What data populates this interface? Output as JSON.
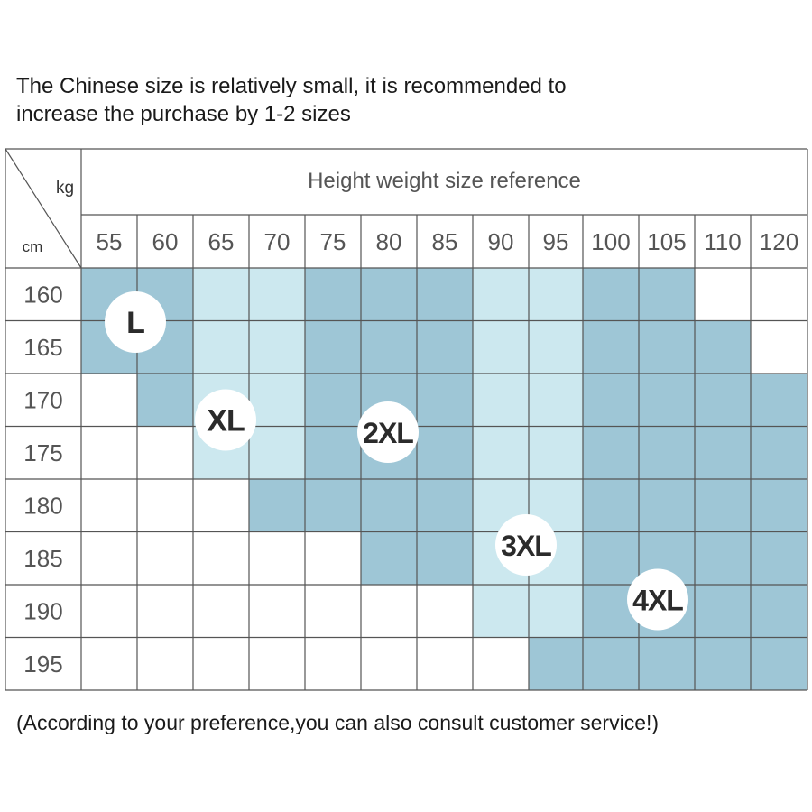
{
  "notice": {
    "line1": "The Chinese size is relatively small, it is recommended to",
    "line2": "increase the purchase by 1-2 sizes"
  },
  "footer": {
    "text": "(According to your preference,you can also consult customer service!)"
  },
  "chart_data": {
    "type": "table",
    "title": "Height weight size reference",
    "corner_labels": {
      "columns_unit": "kg",
      "rows_unit": "cm"
    },
    "weights_kg": [
      "55",
      "60",
      "65",
      "70",
      "75",
      "80",
      "85",
      "90",
      "95",
      "100",
      "105",
      "110",
      "120"
    ],
    "heights_cm": [
      "160",
      "165",
      "170",
      "175",
      "180",
      "185",
      "190",
      "195"
    ],
    "sizes": [
      "L",
      "XL",
      "2XL",
      "3XL",
      "4XL"
    ],
    "grid": [
      [
        "L",
        "L",
        "XL",
        "XL",
        "2XL",
        "2XL",
        "2XL",
        "3XL",
        "3XL",
        "4XL",
        "4XL",
        "",
        ""
      ],
      [
        "L",
        "L",
        "XL",
        "XL",
        "2XL",
        "2XL",
        "2XL",
        "3XL",
        "3XL",
        "4XL",
        "4XL",
        "4XL",
        ""
      ],
      [
        "",
        "L",
        "XL",
        "XL",
        "2XL",
        "2XL",
        "2XL",
        "3XL",
        "3XL",
        "4XL",
        "4XL",
        "4XL",
        "4XL"
      ],
      [
        "",
        "",
        "XL",
        "XL",
        "2XL",
        "2XL",
        "2XL",
        "3XL",
        "3XL",
        "4XL",
        "4XL",
        "4XL",
        "4XL"
      ],
      [
        "",
        "",
        "",
        "2XL",
        "2XL",
        "2XL",
        "2XL",
        "3XL",
        "3XL",
        "4XL",
        "4XL",
        "4XL",
        "4XL"
      ],
      [
        "",
        "",
        "",
        "",
        "",
        "2XL",
        "2XL",
        "3XL",
        "3XL",
        "4XL",
        "4XL",
        "4XL",
        "4XL"
      ],
      [
        "",
        "",
        "",
        "",
        "",
        "",
        "",
        "3XL",
        "3XL",
        "4XL",
        "4XL",
        "4XL",
        "4XL"
      ],
      [
        "",
        "",
        "",
        "",
        "",
        "",
        "",
        "",
        "4XL",
        "4XL",
        "4XL",
        "4XL",
        "4XL"
      ]
    ],
    "size_colors": {
      "L": "#9ec6d6",
      "XL": "#cce8ef",
      "2XL": "#9ec6d6",
      "3XL": "#cce8ef",
      "4XL": "#9ec6d6"
    },
    "badges": [
      {
        "size": "L",
        "row": 0,
        "col": 0
      },
      {
        "size": "XL",
        "row": 1,
        "col": 2
      },
      {
        "size": "2XL",
        "row": 2,
        "col": 5
      },
      {
        "size": "3XL",
        "row": 4,
        "col": 8
      },
      {
        "size": "4XL",
        "row": 5,
        "col": 11
      }
    ]
  }
}
